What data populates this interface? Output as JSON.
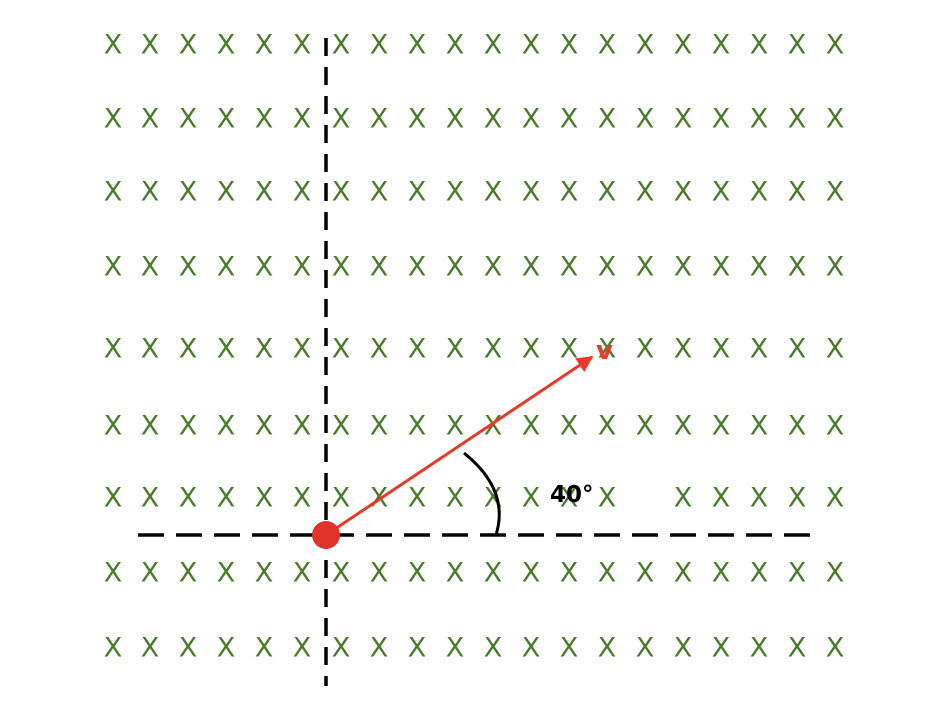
{
  "field": {
    "symbol": "X",
    "color": "#4a7a2b",
    "rows": 9,
    "columns": 20,
    "hidden_cells": [
      [
        6,
        14
      ]
    ]
  },
  "velocity": {
    "label": "v",
    "color": "#e83a2a"
  },
  "angle": {
    "label": "40°",
    "degrees": 40
  },
  "axes": {
    "color": "#000000"
  },
  "particle": {
    "color": "#e0332a"
  }
}
